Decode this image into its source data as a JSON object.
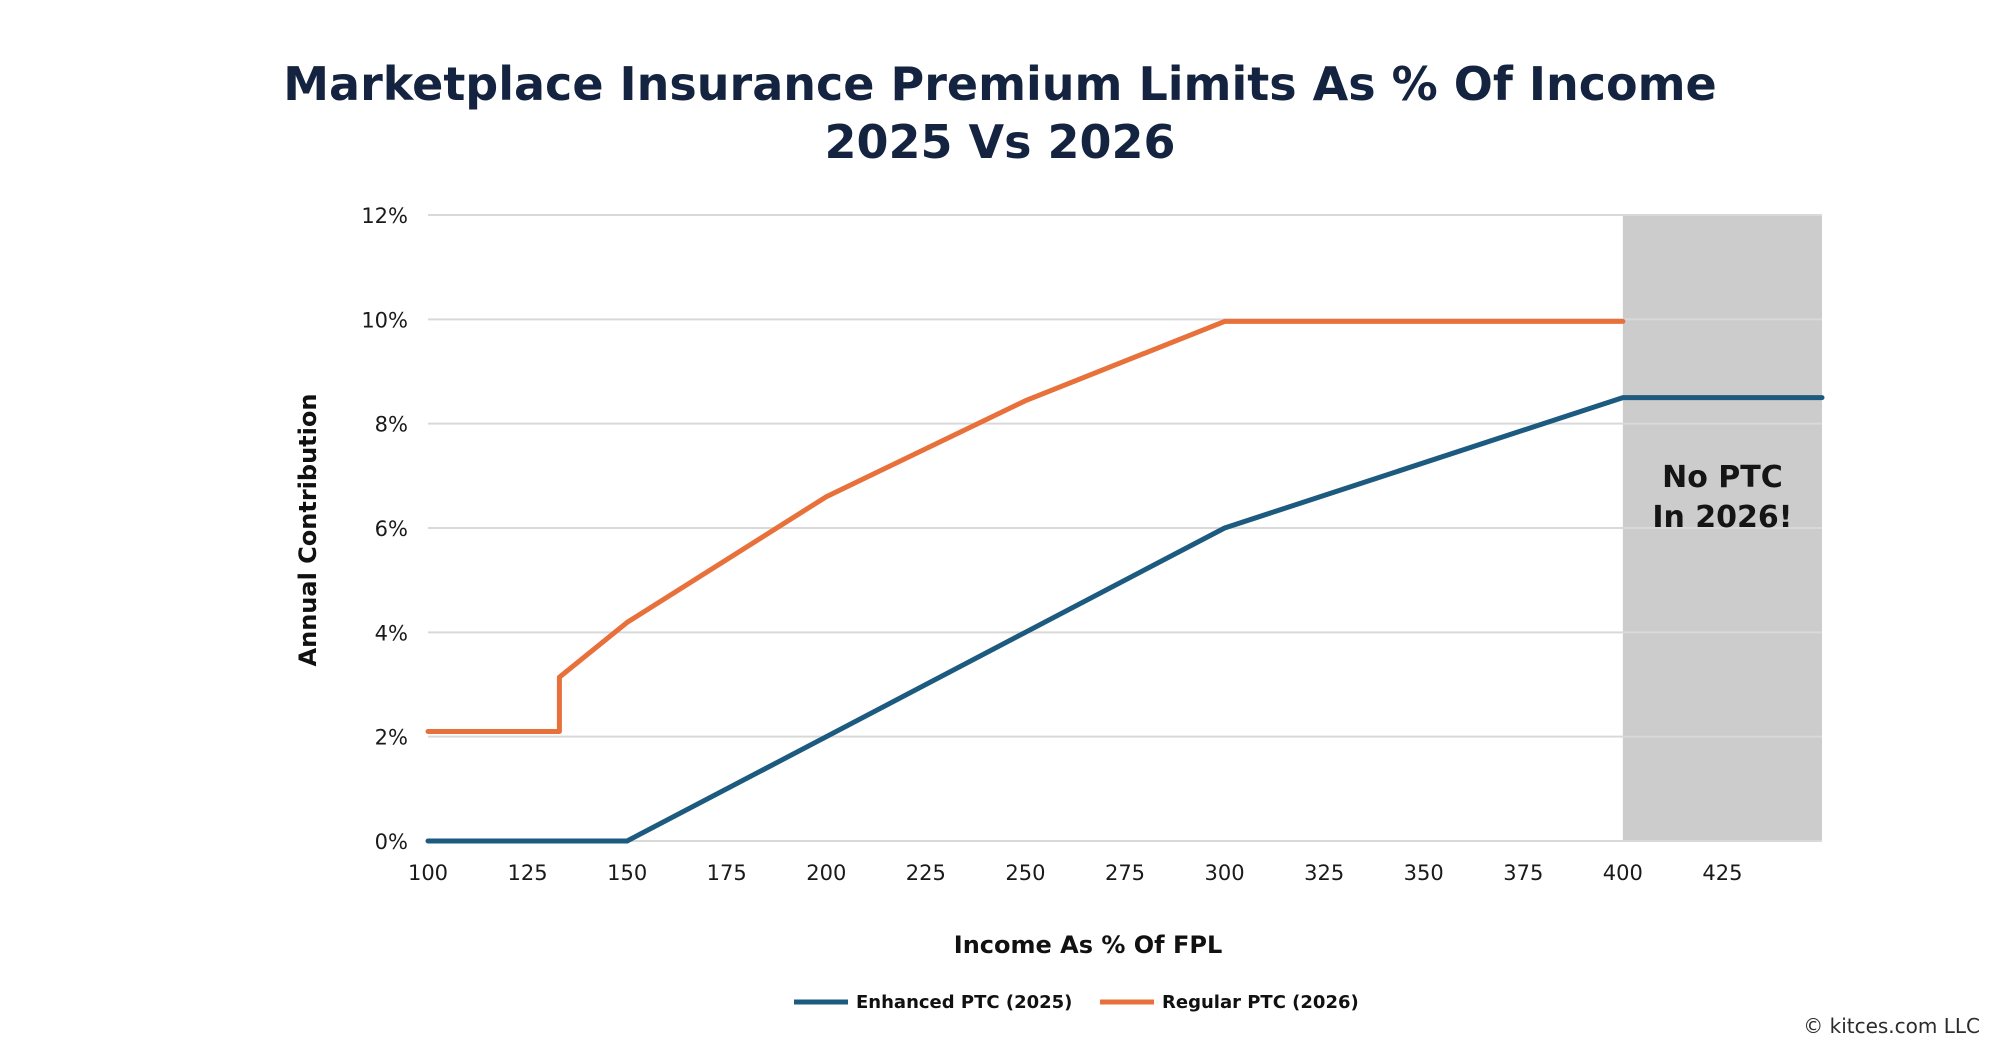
{
  "chart_data": {
    "type": "line",
    "title": "Marketplace Insurance Premium Limits As % Of Income",
    "subtitle": "2025 Vs 2026",
    "xlabel": "Income As % Of FPL",
    "ylabel": "Annual Contribution",
    "xlim": [
      100,
      450
    ],
    "ylim": [
      0,
      12
    ],
    "x_ticks": [
      "100",
      "125",
      "150",
      "175",
      "200",
      "225",
      "250",
      "275",
      "300",
      "325",
      "350",
      "375",
      "400",
      "425"
    ],
    "y_ticks": [
      "0%",
      "2%",
      "4%",
      "6%",
      "8%",
      "10%",
      "12%"
    ],
    "grid": "horizontal",
    "legend_position": "bottom-center",
    "shaded_region": {
      "x_from": 400,
      "x_to": 450,
      "color": "#cccccc"
    },
    "annotation": {
      "lines": [
        "No PTC",
        "In 2026!"
      ],
      "x": 425,
      "y": 6.4
    },
    "series": [
      {
        "name": "Enhanced PTC (2025)",
        "color": "#1d5a7f",
        "points": [
          [
            100,
            0
          ],
          [
            150,
            0
          ],
          [
            200,
            2
          ],
          [
            250,
            4
          ],
          [
            300,
            6
          ],
          [
            400,
            8.5
          ],
          [
            450,
            8.5
          ]
        ]
      },
      {
        "name": "Regular PTC (2026)",
        "color": "#e8703a",
        "points": [
          [
            100,
            2.1
          ],
          [
            133,
            2.1
          ],
          [
            133,
            3.14
          ],
          [
            150,
            4.19
          ],
          [
            200,
            6.6
          ],
          [
            250,
            8.44
          ],
          [
            300,
            9.96
          ],
          [
            400,
            9.96
          ]
        ]
      }
    ]
  },
  "footer": {
    "copyright": "© kitces.com LLC"
  }
}
